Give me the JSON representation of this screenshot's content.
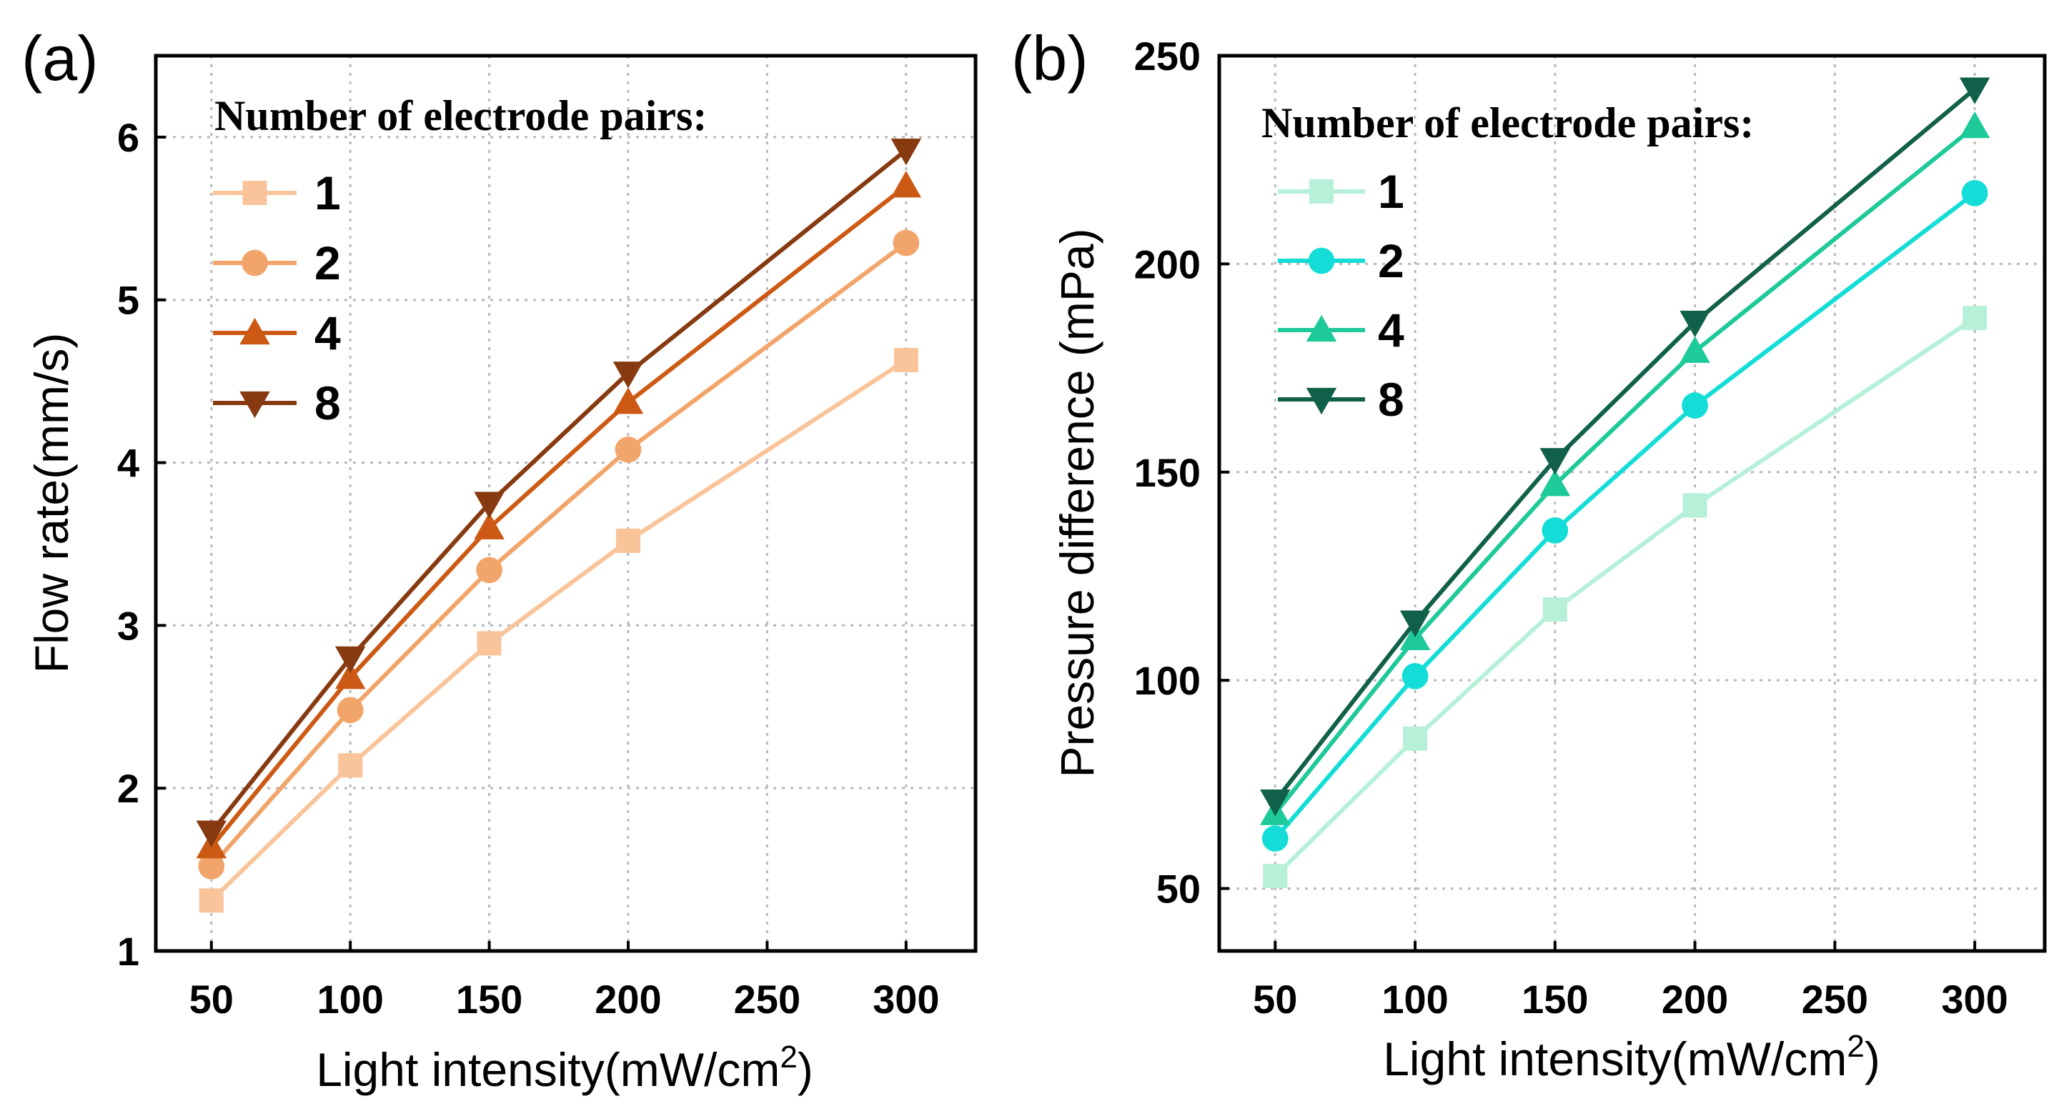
{
  "chart_data": [
    {
      "type": "line",
      "panel_label": "(a)",
      "title": "",
      "xlabel_main": "Light intensity(mW/cm",
      "xlabel_sup": "2",
      "xlabel_end": ")",
      "ylabel": "Flow rate(mm/s)",
      "xlim": [
        30,
        325
      ],
      "ylim": [
        1,
        6.5
      ],
      "xticks": [
        "50",
        "100",
        "150",
        "200",
        "250",
        "300"
      ],
      "yticks": [
        "1",
        "2",
        "3",
        "4",
        "5",
        "6"
      ],
      "grid": true,
      "legend_title": "Number of electrode pairs:",
      "legend_position": "top-left",
      "x": [
        50,
        100,
        150,
        200,
        300
      ],
      "series": [
        {
          "name": "1",
          "marker": "square",
          "color": "#f9c49a",
          "values": [
            1.31,
            2.14,
            2.89,
            3.52,
            4.63
          ]
        },
        {
          "name": "2",
          "marker": "circle",
          "color": "#f2a56a",
          "values": [
            1.52,
            2.48,
            3.34,
            4.08,
            5.35
          ]
        },
        {
          "name": "4",
          "marker": "triangle-up",
          "color": "#cc5a14",
          "values": [
            1.64,
            2.68,
            3.6,
            4.37,
            5.7
          ]
        },
        {
          "name": "8",
          "marker": "triangle-down",
          "color": "#873a10",
          "values": [
            1.73,
            2.8,
            3.75,
            4.55,
            5.92
          ]
        }
      ]
    },
    {
      "type": "line",
      "panel_label": "(b)",
      "title": "",
      "xlabel_main": "Light intensity(mW/cm",
      "xlabel_sup": "2",
      "xlabel_end": ")",
      "ylabel": "Pressure difference (mPa)",
      "xlim": [
        30,
        325
      ],
      "ylim": [
        35,
        250
      ],
      "xticks": [
        "50",
        "100",
        "150",
        "200",
        "250",
        "300"
      ],
      "yticks": [
        "50",
        "100",
        "150",
        "200",
        "250"
      ],
      "grid": true,
      "legend_title": "Number of electrode pairs:",
      "legend_position": "top-left",
      "x": [
        50,
        100,
        150,
        200,
        300
      ],
      "series": [
        {
          "name": "1",
          "marker": "square",
          "color": "#b6f0d8",
          "values": [
            53,
            86,
            117,
            142,
            187
          ]
        },
        {
          "name": "2",
          "marker": "circle",
          "color": "#13ddd6",
          "values": [
            62,
            101,
            136,
            166,
            217
          ]
        },
        {
          "name": "4",
          "marker": "triangle-up",
          "color": "#1ec99a",
          "values": [
            68,
            110,
            147,
            179,
            233
          ]
        },
        {
          "name": "8",
          "marker": "triangle-down",
          "color": "#11614a",
          "values": [
            71,
            114,
            153,
            186,
            242
          ]
        }
      ]
    }
  ]
}
